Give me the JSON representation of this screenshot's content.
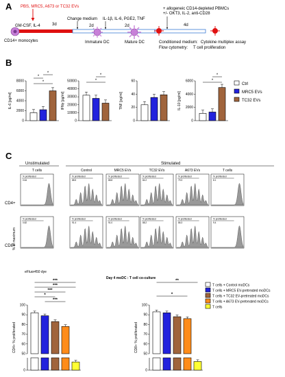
{
  "panels": {
    "a": "A",
    "b": "B",
    "c": "C"
  },
  "panel_a": {
    "treatment": "PBS, MRC5, A673 or TC32 EVs",
    "gm": "GM-CSF, IL-4",
    "d3": "3d",
    "change": "Change medium",
    "d2a": "2d",
    "cytokines": "IL-1β, IL-6, PGE2, TNF",
    "d2b": "2d",
    "allo": "+ allogeneic CD14-depleted PBMCs",
    "okt": "+/- OKT3, IL-2, anti-CD28",
    "d4": "4d",
    "mono": "CD14+ monocytes",
    "imm": "Immature DC",
    "mat": "Mature DC",
    "cond": "Conditioned medium:",
    "cond_v": "Cytokine multiplex assay",
    "flow": "Flow cytometry:",
    "flow_v": "T cell proliferation"
  },
  "panel_b": {
    "legend": [
      "Ctrl",
      "MRC5 EVs",
      "TC32 EVs"
    ],
    "colors": {
      "ctrl": "#ffffff",
      "mrc5": "#2222dd",
      "tc32": "#a0643c"
    },
    "sig": "*"
  },
  "chart_data": [
    {
      "type": "bar",
      "ylabel": "IL-6 [pg/ml]",
      "ticks": [
        "0",
        "2000",
        "4000",
        "6000",
        "8000"
      ],
      "ylim": [
        0,
        8000
      ],
      "series": [
        {
          "name": "Ctrl",
          "values": [
            1600
          ]
        },
        {
          "name": "MRC5 EVs",
          "values": [
            2200
          ]
        },
        {
          "name": "TC32 EVs",
          "values": [
            6000
          ]
        }
      ]
    },
    {
      "type": "bar",
      "ylabel": "IFNγ [pg/ml]",
      "ticks": [
        "0",
        "10000",
        "20000",
        "30000",
        "40000",
        "50000"
      ],
      "ylim": [
        0,
        50000
      ],
      "series": [
        {
          "name": "Ctrl",
          "values": [
            32000
          ]
        },
        {
          "name": "MRC5 EVs",
          "values": [
            28000
          ]
        },
        {
          "name": "TC32 EVs",
          "values": [
            22000
          ]
        }
      ]
    },
    {
      "type": "bar",
      "ylabel": "TNF [pg/ml]",
      "ticks": [
        "0",
        "20",
        "40",
        "60"
      ],
      "ylim": [
        0,
        60
      ],
      "series": [
        {
          "name": "Ctrl",
          "values": [
            24
          ]
        },
        {
          "name": "MRC5 EVs",
          "values": [
            35
          ]
        },
        {
          "name": "TC32 EVs",
          "values": [
            39
          ]
        }
      ]
    },
    {
      "type": "bar",
      "ylabel": "IL-10 [pg/ml]",
      "ticks": [
        "0",
        "2000",
        "4000",
        "6000"
      ],
      "ylim": [
        0,
        6000
      ],
      "series": [
        {
          "name": "Ctrl",
          "values": [
            1100
          ]
        },
        {
          "name": "MRC5 EVs",
          "values": [
            1300
          ]
        },
        {
          "name": "TC32 EVs",
          "values": [
            5000
          ]
        }
      ]
    },
    {
      "type": "bar",
      "ylabel": "CD4+ % proliferated",
      "ticks": [
        "0",
        "50",
        "60",
        "70",
        "80",
        "90",
        "100"
      ],
      "ylim": [
        0,
        100
      ],
      "series": [
        {
          "name": "T cells + Control moDCs",
          "values": [
            92
          ]
        },
        {
          "name": "T cells + MRC5 EV-pretreated moDCs",
          "values": [
            89
          ]
        },
        {
          "name": "T cells + TC32 EV-pretreated moDCs",
          "values": [
            83
          ]
        },
        {
          "name": "T cells + A673 EV-pretreated moDCs",
          "values": [
            78
          ]
        },
        {
          "name": "T cells",
          "values": [
            33
          ]
        }
      ]
    },
    {
      "type": "bar",
      "ylabel": "CD8+ % proliferated",
      "ticks": [
        "0",
        "50",
        "60",
        "70",
        "80",
        "90",
        "100"
      ],
      "ylim": [
        0,
        100
      ],
      "series": [
        {
          "name": "T cells + Control moDCs",
          "values": [
            93
          ]
        },
        {
          "name": "T cells + MRC5 EV-pretreated moDCs",
          "values": [
            92
          ]
        },
        {
          "name": "T cells + TC32 EV-pretreated moDCs",
          "values": [
            88
          ]
        },
        {
          "name": "T cells + A673 EV-pretreated moDCs",
          "values": [
            86
          ]
        },
        {
          "name": "T cells",
          "values": [
            35
          ]
        }
      ]
    }
  ],
  "panel_c": {
    "unstim": "Unstimulated",
    "stim": "Stimulated",
    "columns": [
      "T cells",
      "Control",
      "MRC5 EVs",
      "TC32 EVs",
      "A673 EVs",
      "T cells"
    ],
    "rows": [
      "CD4+",
      "CD8+"
    ],
    "yaxis": "% of maximum",
    "xaxis": "eFluor450 dye",
    "gate": "% proliferated",
    "gate_vals": [
      [
        "0.64",
        "88.5",
        "88.8",
        "84.2",
        "79.3",
        "8.1"
      ],
      [
        "0.82",
        "91.4",
        "91.0",
        "88.2",
        "86.3",
        "9.4"
      ]
    ],
    "coculture": "Day 4 moDC : T cell co-culture",
    "legend_colors": [
      "#ffffff",
      "#2222dd",
      "#a0643c",
      "#ff8c1a",
      "#ffff33"
    ],
    "sig3": "***",
    "sig1": "*",
    "sig2": "**"
  }
}
